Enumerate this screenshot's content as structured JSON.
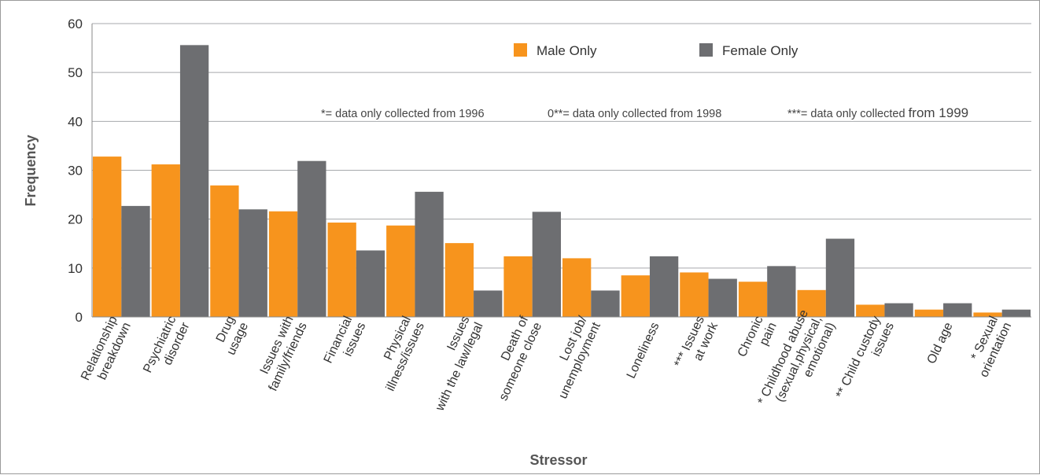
{
  "chart_data": {
    "type": "bar",
    "xlabel": "Stressor",
    "ylabel": "Frequency",
    "ylim": [
      0,
      60
    ],
    "yticks": [
      0,
      10,
      20,
      30,
      40,
      50,
      60
    ],
    "grid": true,
    "legend_position": "top-center",
    "categories": [
      [
        "Relationship",
        "breakdown"
      ],
      [
        "Psychiatric",
        "disorder"
      ],
      [
        "Drug",
        "usage"
      ],
      [
        "Issues with",
        "family/friends"
      ],
      [
        "Financial",
        "issues"
      ],
      [
        "Physical",
        "illness/issues"
      ],
      [
        "Issues",
        "with the law/legal"
      ],
      [
        "Death of",
        "someone close"
      ],
      [
        "Lost job/",
        "unemployment"
      ],
      [
        "Loneliness"
      ],
      [
        "*** Issues",
        "at work"
      ],
      [
        "Chronic",
        "pain"
      ],
      [
        "* Childhood abuse",
        "(sexual,physical,",
        "emotional)"
      ],
      [
        "** Child custody",
        "issues"
      ],
      [
        "Old age"
      ],
      [
        "* Sexual",
        "orientation"
      ]
    ],
    "series": [
      {
        "name": "Male Only",
        "color": "#f7941d",
        "values": [
          32.8,
          31.2,
          26.9,
          21.6,
          19.3,
          18.7,
          15.1,
          12.4,
          12.0,
          8.5,
          9.1,
          7.2,
          5.5,
          2.5,
          1.5,
          0.9
        ]
      },
      {
        "name": "Female Only",
        "color": "#6d6e71",
        "values": [
          22.7,
          55.6,
          22.0,
          31.9,
          13.6,
          25.6,
          5.4,
          21.5,
          5.4,
          12.4,
          7.8,
          10.4,
          16.0,
          2.8,
          2.8,
          1.5
        ]
      }
    ],
    "annotations": [
      {
        "text": "*= data only collected from 1996"
      },
      {
        "text": "0**= data only collected from 1998"
      },
      {
        "text": "***= data only collected ",
        "tail": "from 1999"
      }
    ]
  }
}
